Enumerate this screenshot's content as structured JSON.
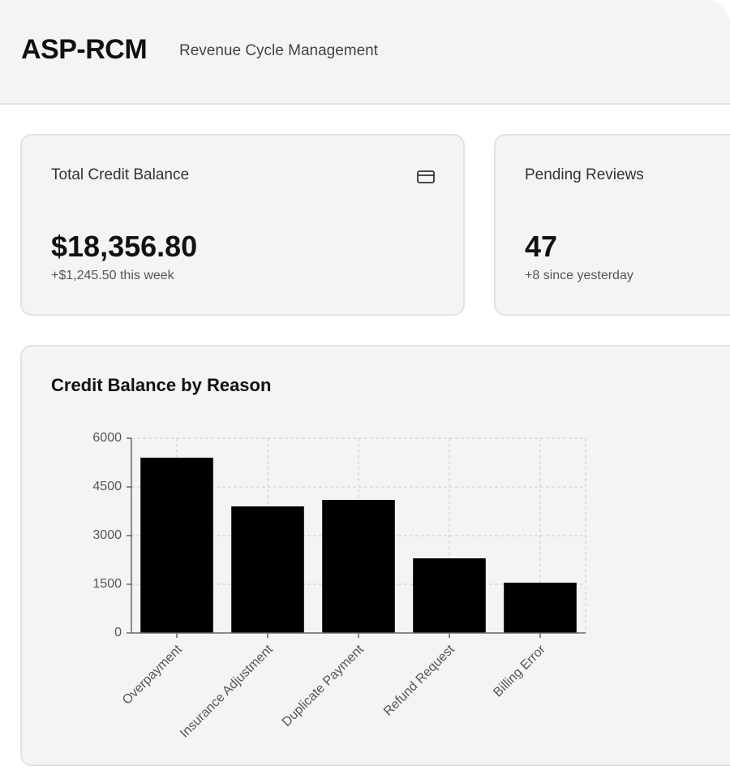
{
  "header": {
    "title": "ASP-RCM",
    "subtitle": "Revenue Cycle Management"
  },
  "cards": [
    {
      "label": "Total Credit Balance",
      "value": "$18,356.80",
      "change": "+$1,245.50 this week"
    },
    {
      "label": "Pending Reviews",
      "value": "47",
      "change": "+8 since yesterday"
    }
  ],
  "chart_data": {
    "type": "bar",
    "title": "Credit Balance by Reason",
    "categories": [
      "Overpayment",
      "Insurance Adjustment",
      "Duplicate Payment",
      "Refund Request",
      "Billing Error"
    ],
    "values": [
      5400,
      3900,
      4100,
      2300,
      1550
    ],
    "color": "#000000",
    "ylim": [
      0,
      6000
    ],
    "yticks": [
      0,
      1500,
      3000,
      4500,
      6000
    ],
    "grid": true
  }
}
